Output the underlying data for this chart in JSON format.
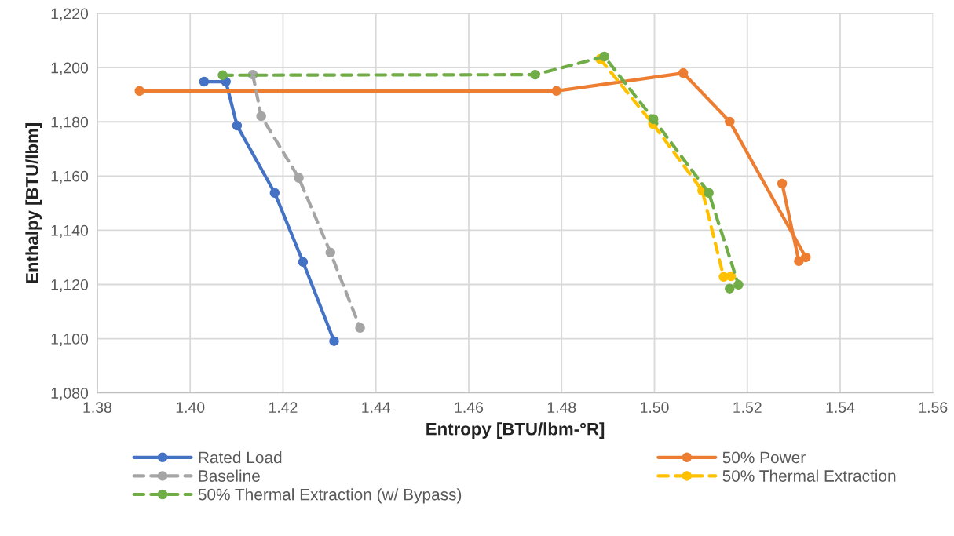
{
  "chart_data": {
    "type": "line",
    "xlabel": "Entropy [BTU/lbm-°R]",
    "ylabel": "Enthalpy [BTU/lbm]",
    "xlim": [
      1.38,
      1.56
    ],
    "xticks": [
      {
        "value": 1.38,
        "label": "1.38"
      },
      {
        "value": 1.4,
        "label": "1.40"
      },
      {
        "value": 1.42,
        "label": "1.42"
      },
      {
        "value": 1.44,
        "label": "1.44"
      },
      {
        "value": 1.46,
        "label": "1.46"
      },
      {
        "value": 1.48,
        "label": "1.48"
      },
      {
        "value": 1.5,
        "label": "1.50"
      },
      {
        "value": 1.52,
        "label": "1.52"
      },
      {
        "value": 1.54,
        "label": "1.54"
      },
      {
        "value": 1.56,
        "label": "1.56"
      }
    ],
    "ylim": [
      1080,
      1220
    ],
    "yticks": [
      {
        "value": 1080,
        "label": "1,080"
      },
      {
        "value": 1100,
        "label": "1,100"
      },
      {
        "value": 1120,
        "label": "1,120"
      },
      {
        "value": 1140,
        "label": "1,140"
      },
      {
        "value": 1160,
        "label": "1,160"
      },
      {
        "value": 1180,
        "label": "1,180"
      },
      {
        "value": 1200,
        "label": "1,200"
      },
      {
        "value": 1220,
        "label": "1,220"
      }
    ],
    "grid": true,
    "legend": "bottom",
    "marker": "circle",
    "series": [
      {
        "name": "Rated Load",
        "color": "#4472c4",
        "line_style": "solid",
        "x": [
          1.403,
          1.4077,
          1.4101,
          1.4182,
          1.4243,
          1.431
        ],
        "values": [
          1194.8,
          1194.8,
          1178.6,
          1153.8,
          1128.3,
          1099.1
        ]
      },
      {
        "name": "50% Power",
        "color": "#ed7d31",
        "line_style": "solid",
        "x": [
          1.3891,
          1.4789,
          1.5062,
          1.5162,
          1.5326,
          1.5311,
          1.5275
        ],
        "values": [
          1191.4,
          1191.4,
          1198.0,
          1180.1,
          1130.0,
          1128.6,
          1157.2
        ]
      },
      {
        "name": "Baseline",
        "color": "#a5a5a5",
        "line_style": "dashed",
        "x": [
          1.4135,
          1.4153,
          1.4234,
          1.4302,
          1.4366
        ],
        "values": [
          1197.4,
          1182.1,
          1159.3,
          1131.8,
          1104.0
        ]
      },
      {
        "name": "50% Thermal Extraction",
        "color": "#ffc000",
        "line_style": "dashed",
        "x": [
          1.4883,
          1.4997,
          1.5103,
          1.5149,
          1.5165
        ],
        "values": [
          1203.2,
          1179.2,
          1154.6,
          1122.8,
          1123.0
        ]
      },
      {
        "name": "50% Thermal Extraction (w/ Bypass)",
        "color": "#70ad47",
        "line_style": "dashed",
        "x": [
          1.407,
          1.4743,
          1.4892,
          1.4998,
          1.5117,
          1.5181,
          1.5162
        ],
        "values": [
          1197.2,
          1197.4,
          1204.1,
          1181.0,
          1153.8,
          1119.9,
          1118.5
        ]
      }
    ]
  }
}
